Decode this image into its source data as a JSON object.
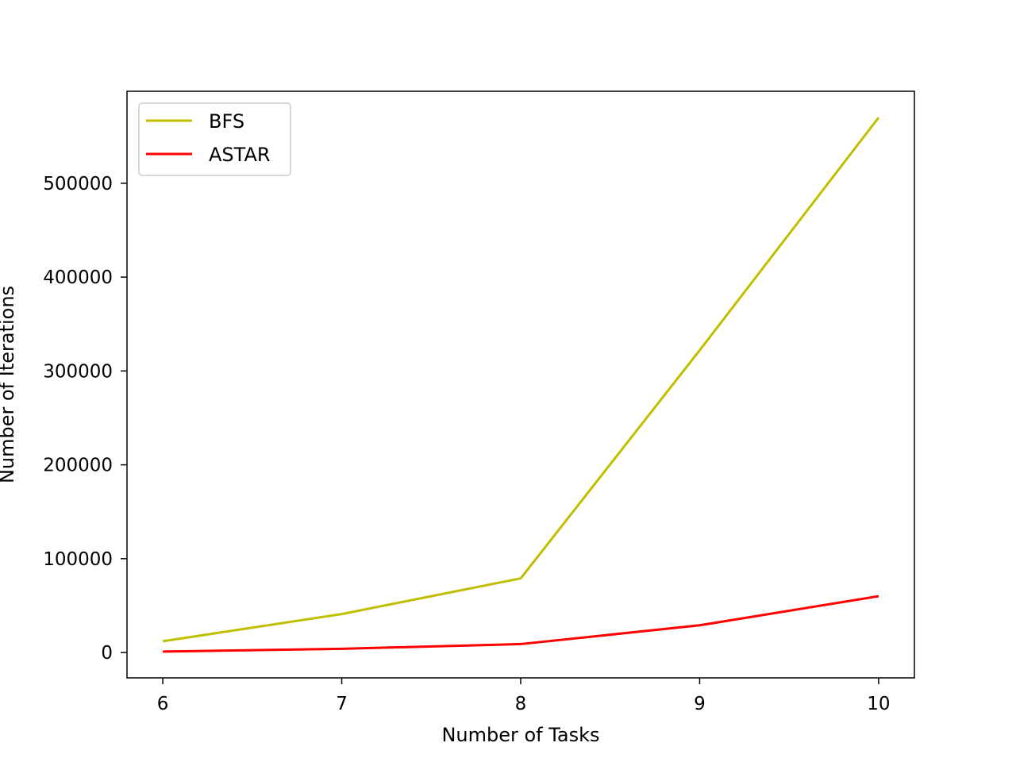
{
  "chart_data": {
    "type": "line",
    "xlabel": "Number of Tasks",
    "ylabel": "Number of Iterations",
    "x": [
      6,
      7,
      8,
      9,
      10
    ],
    "series": [
      {
        "name": "BFS",
        "color": "#bfbf00",
        "values": [
          12000,
          41000,
          79000,
          322000,
          570000
        ]
      },
      {
        "name": "ASTAR",
        "color": "#ff0000",
        "values": [
          1000,
          4000,
          9000,
          29000,
          60000
        ]
      }
    ],
    "xticks": [
      6,
      7,
      8,
      9,
      10
    ],
    "yticks": [
      0,
      100000,
      200000,
      300000,
      400000,
      500000
    ],
    "xlim": [
      5.8,
      10.2
    ],
    "ylim": [
      -27000,
      598000
    ],
    "grid": false,
    "legend_position": "top-left"
  }
}
